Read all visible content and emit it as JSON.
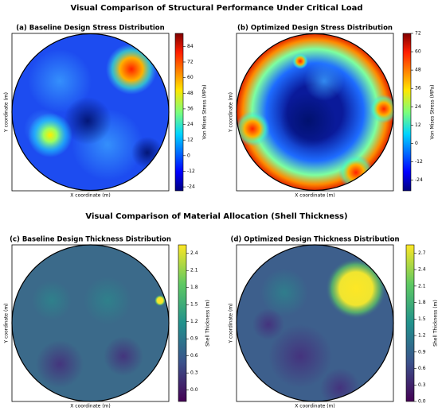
{
  "headings": [
    "Visual Comparison of Structural Performance Under Critical Load",
    "Visual Comparison of Material Allocation (Shell Thickness)"
  ],
  "chart_data": [
    {
      "type": "heatmap",
      "title": "(a) Baseline Design Stress Distribution",
      "xlabel": "X coordinate (m)",
      "ylabel": "Y coordinate (m)",
      "colorbar_label": "Von Mises Stress (MPa)",
      "colormap": "jet",
      "clim": [
        -27,
        94
      ],
      "cticks": [
        -24,
        -12,
        0,
        12,
        24,
        36,
        48,
        60,
        72,
        84
      ]
    },
    {
      "type": "heatmap",
      "title": "(b) Optimized Design Stress Distribution",
      "xlabel": "X coordinate (m)",
      "ylabel": "Y coordinate (m)",
      "colorbar_label": "Von Mises Stress (MPa)",
      "colormap": "jet",
      "clim": [
        -31,
        72
      ],
      "cticks": [
        -24,
        -12,
        0,
        12,
        24,
        36,
        48,
        60,
        72
      ]
    },
    {
      "type": "heatmap",
      "title": "(c) Baseline Design Thickness Distribution",
      "xlabel": "X coordinate (m)",
      "ylabel": "Y coordinate (m)",
      "colorbar_label": "Shell Thickness (m)",
      "colormap": "viridis",
      "clim": [
        -0.2,
        2.55
      ],
      "cticks": [
        {
          "value": 0,
          "label": "0.0"
        },
        0.3,
        0.6,
        0.9,
        1.2,
        1.5,
        1.8,
        2.1,
        2.4
      ]
    },
    {
      "type": "heatmap",
      "title": "(d) Optimized Design Thickness Distribution",
      "xlabel": "X coordinate (m)",
      "ylabel": "Y coordinate (m)",
      "colorbar_label": "Shell Thickness (m)",
      "colormap": "viridis",
      "clim": [
        0,
        2.85
      ],
      "cticks": [
        {
          "value": 0,
          "label": "0.0"
        },
        0.3,
        0.6,
        0.9,
        1.2,
        1.5,
        1.8,
        2.1,
        2.4,
        2.7
      ]
    }
  ]
}
